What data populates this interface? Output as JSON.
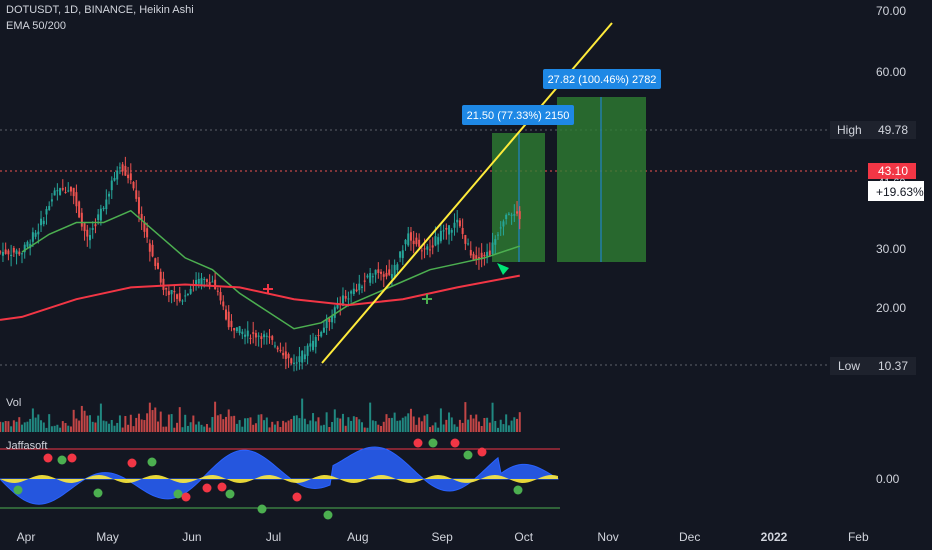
{
  "header": {
    "title": "DOTUSDT, 1D, BINANCE, Heikin Ashi",
    "indicator": "EMA 50/200",
    "volume_label": "Vol",
    "oscillator_label": "Jaffasoft"
  },
  "price_axis": {
    "ticks": [
      "70.00",
      "60.00",
      "30.00",
      "20.00"
    ],
    "osc_tick": "0.00"
  },
  "markers": {
    "high_label": "High",
    "high_value": "49.78",
    "low_label": "Low",
    "low_value": "10.37",
    "last_price": "43.10",
    "last_change": "+19.63%",
    "hidden_price": "41.60"
  },
  "measures": {
    "small_label": "21.50 (77.33%) 2150",
    "large_label": "27.82 (100.46%) 2782"
  },
  "colors": {
    "background": "#131722",
    "up": "#26a69a",
    "down": "#ef5350",
    "ema50": "#4caf50",
    "ema200": "#f23645",
    "trendline": "#ffeb3b",
    "measure_fill": "#2e7d32",
    "measure_label": "#1e88e5",
    "osc_blue": "#2962ff",
    "osc_yellow": "#ffeb3b"
  },
  "chart_data": {
    "type": "candlestick",
    "x_ticks": [
      "Apr",
      "May",
      "Jun",
      "Jul",
      "Aug",
      "Sep",
      "Oct",
      "Nov",
      "Dec",
      "2022",
      "Feb"
    ],
    "x_tick_days": [
      0,
      30,
      61,
      91,
      122,
      153,
      183,
      214,
      244,
      275,
      306
    ],
    "ylim": [
      10,
      70
    ],
    "series": [
      {
        "name": "price",
        "points": [
          [
            0,
            30
          ],
          [
            6,
            34
          ],
          [
            12,
            40
          ],
          [
            18,
            41
          ],
          [
            24,
            32
          ],
          [
            30,
            38
          ],
          [
            36,
            45
          ],
          [
            40,
            42
          ],
          [
            46,
            32
          ],
          [
            52,
            24
          ],
          [
            58,
            22
          ],
          [
            64,
            25
          ],
          [
            70,
            25
          ],
          [
            76,
            18
          ],
          [
            82,
            16
          ],
          [
            88,
            16
          ],
          [
            94,
            14
          ],
          [
            100,
            11
          ],
          [
            106,
            14
          ],
          [
            112,
            18
          ],
          [
            118,
            22
          ],
          [
            124,
            24
          ],
          [
            130,
            27
          ],
          [
            136,
            26
          ],
          [
            142,
            33
          ],
          [
            148,
            30
          ],
          [
            154,
            33
          ],
          [
            160,
            35
          ],
          [
            166,
            29
          ],
          [
            172,
            30
          ],
          [
            178,
            37
          ],
          [
            183,
            36
          ]
        ]
      },
      {
        "name": "EMA 50",
        "points": [
          [
            0,
            30
          ],
          [
            10,
            33
          ],
          [
            20,
            35
          ],
          [
            30,
            35
          ],
          [
            40,
            37
          ],
          [
            50,
            33
          ],
          [
            60,
            29
          ],
          [
            70,
            27
          ],
          [
            80,
            23
          ],
          [
            90,
            20
          ],
          [
            100,
            17
          ],
          [
            110,
            18
          ],
          [
            120,
            21
          ],
          [
            130,
            23
          ],
          [
            140,
            25
          ],
          [
            150,
            27
          ],
          [
            160,
            28
          ],
          [
            170,
            29
          ],
          [
            183,
            31
          ]
        ]
      },
      {
        "name": "EMA 200",
        "points": [
          [
            0,
            19
          ],
          [
            20,
            22
          ],
          [
            40,
            24
          ],
          [
            60,
            24.5
          ],
          [
            80,
            24
          ],
          [
            100,
            22
          ],
          [
            120,
            21
          ],
          [
            140,
            22
          ],
          [
            160,
            24
          ],
          [
            183,
            26
          ]
        ]
      }
    ]
  }
}
